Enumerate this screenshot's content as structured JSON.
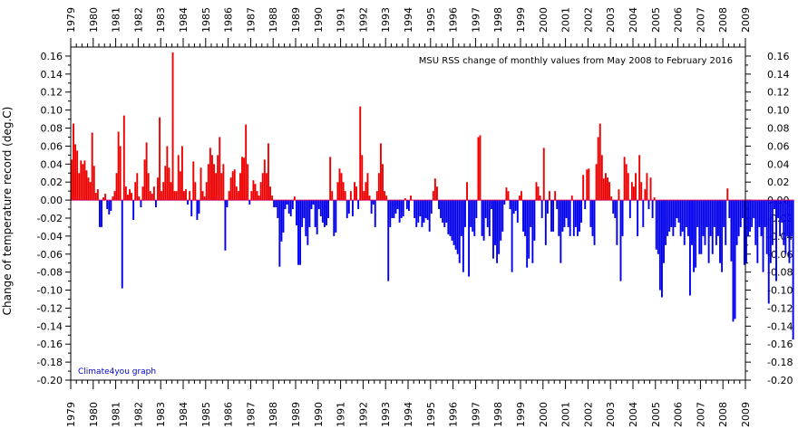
{
  "chart_data": {
    "type": "bar",
    "title": "MSU RSS change of monthly values from May 2008 to February 2016",
    "ylabel": "Change of temperature record (deg.C)",
    "xlabel": "",
    "credit": "Climate4you graph",
    "xlim": [
      1979,
      2009
    ],
    "ylim": [
      -0.2,
      0.17
    ],
    "ytick_labels": [
      "0.16",
      "0.14",
      "0.12",
      "0.10",
      "0.08",
      "0.06",
      "0.04",
      "0.02",
      "0.00",
      "-0.02",
      "-0.04",
      "-0.06",
      "-0.08",
      "-0.10",
      "-0.12",
      "-0.14",
      "-0.16",
      "-0.18",
      "-0.20"
    ],
    "ytick_values": [
      0.16,
      0.14,
      0.12,
      0.1,
      0.08,
      0.06,
      0.04,
      0.02,
      0.0,
      -0.02,
      -0.04,
      -0.06,
      -0.08,
      -0.1,
      -0.12,
      -0.14,
      -0.16,
      -0.18,
      -0.2
    ],
    "xtick_labels": [
      "1979",
      "1980",
      "1981",
      "1982",
      "1983",
      "1984",
      "1985",
      "1986",
      "1987",
      "1988",
      "1989",
      "1990",
      "1991",
      "1992",
      "1993",
      "1994",
      "1995",
      "1996",
      "1997",
      "1998",
      "1999",
      "2000",
      "2001",
      "2002",
      "2003",
      "2004",
      "2005",
      "2006",
      "2007",
      "2008",
      "2009"
    ],
    "xtick_values": [
      1979,
      1980,
      1981,
      1982,
      1983,
      1984,
      1985,
      1986,
      1987,
      1988,
      1989,
      1990,
      1991,
      1992,
      1993,
      1994,
      1995,
      1996,
      1997,
      1998,
      1999,
      2000,
      2001,
      2002,
      2003,
      2004,
      2005,
      2006,
      2007,
      2008,
      2009
    ],
    "grid": false,
    "positive_color": "#ee0000",
    "negative_color": "#0000ee",
    "zero_line_color": "#cc0066",
    "series": [
      {
        "start": "1979-01",
        "frequency": "monthly",
        "values": [
          0.045,
          0.085,
          0.062,
          0.055,
          0.03,
          0.044,
          0.04,
          0.044,
          0.033,
          0.025,
          0.02,
          0.075,
          0.038,
          0.008,
          0.012,
          -0.03,
          -0.03,
          0.003,
          0.007,
          -0.01,
          -0.016,
          -0.012,
          0.004,
          0.01,
          0.03,
          0.076,
          0.06,
          -0.098,
          0.094,
          0.015,
          0.006,
          0.012,
          0.008,
          -0.022,
          0.02,
          0.03,
          0.004,
          -0.008,
          0.015,
          0.045,
          0.064,
          0.03,
          0.01,
          0.007,
          0.015,
          -0.008,
          0.025,
          0.092,
          0.01,
          0.02,
          0.038,
          0.06,
          0.036,
          0.02,
          0.164,
          0.01,
          0.01,
          0.05,
          0.032,
          0.06,
          0.01,
          0.012,
          -0.005,
          0.01,
          -0.018,
          0.043,
          0.02,
          -0.022,
          -0.015,
          0.036,
          0.01,
          0.004,
          0.02,
          0.04,
          0.058,
          0.05,
          0.04,
          0.03,
          0.05,
          0.07,
          0.03,
          0.04,
          -0.056,
          -0.008,
          0.01,
          0.025,
          0.032,
          0.034,
          0.015,
          0.01,
          0.03,
          0.048,
          0.047,
          0.084,
          0.04,
          -0.005,
          0.01,
          0.022,
          0.018,
          0.01,
          0.005,
          0.02,
          0.03,
          0.045,
          0.03,
          0.063,
          0.015,
          0.005,
          -0.008,
          -0.008,
          -0.02,
          -0.074,
          -0.046,
          -0.036,
          -0.01,
          -0.005,
          -0.015,
          -0.018,
          -0.01,
          0.004,
          -0.028,
          -0.072,
          -0.072,
          -0.03,
          -0.02,
          -0.04,
          -0.05,
          -0.03,
          -0.01,
          -0.005,
          -0.03,
          -0.038,
          -0.01,
          -0.018,
          -0.025,
          -0.03,
          -0.028,
          -0.02,
          0.048,
          0.01,
          -0.04,
          -0.036,
          0.02,
          0.035,
          0.03,
          0.02,
          0.01,
          -0.02,
          -0.015,
          0.01,
          -0.018,
          0.02,
          0.015,
          -0.01,
          0.104,
          0.05,
          0.01,
          0.02,
          0.03,
          0.005,
          -0.015,
          -0.005,
          -0.03,
          0.01,
          0.03,
          0.063,
          0.04,
          0.01,
          0.005,
          -0.09,
          -0.03,
          -0.02,
          -0.02,
          -0.015,
          -0.01,
          -0.025,
          -0.02,
          -0.018,
          0.002,
          -0.01,
          -0.012,
          0.005,
          0.0,
          -0.02,
          -0.03,
          -0.025,
          -0.018,
          -0.03,
          -0.025,
          -0.02,
          -0.022,
          -0.035,
          -0.015,
          0.01,
          0.024,
          0.015,
          -0.01,
          -0.02,
          -0.025,
          -0.03,
          -0.025,
          -0.038,
          -0.04,
          -0.045,
          -0.05,
          -0.055,
          -0.06,
          -0.07,
          -0.04,
          -0.08,
          -0.03,
          0.02,
          -0.085,
          -0.03,
          -0.035,
          -0.04,
          -0.02,
          0.07,
          0.072,
          -0.04,
          -0.045,
          -0.02,
          -0.03,
          -0.04,
          -0.01,
          -0.065,
          -0.05,
          -0.07,
          -0.06,
          -0.045,
          -0.035,
          -0.005,
          0.014,
          0.01,
          -0.01,
          -0.08,
          -0.015,
          -0.012,
          -0.025,
          0.005,
          0.01,
          -0.035,
          -0.04,
          -0.075,
          -0.065,
          -0.03,
          -0.07,
          -0.045,
          0.02,
          0.015,
          0.005,
          -0.02,
          0.058,
          -0.05,
          -0.015,
          0.01,
          -0.035,
          -0.035,
          0.01,
          -0.01,
          -0.04,
          -0.07,
          -0.035,
          -0.03,
          -0.02,
          -0.03,
          -0.04,
          0.005,
          -0.04,
          -0.03,
          -0.04,
          -0.035,
          -0.025,
          0.028,
          -0.01,
          0.034,
          0.035,
          -0.03,
          -0.04,
          -0.05,
          0.04,
          0.07,
          0.085,
          0.05,
          0.024,
          0.03,
          0.025,
          0.02,
          0.004,
          -0.015,
          -0.02,
          -0.05,
          0.012,
          -0.09,
          -0.04,
          0.048,
          0.04,
          0.03,
          -0.02,
          0.02,
          0.015,
          0.03,
          -0.04,
          0.05,
          0.02,
          -0.03,
          0.012,
          0.03,
          -0.01,
          0.025,
          -0.02,
          0.003,
          -0.055,
          -0.06,
          -0.1,
          -0.108,
          -0.07,
          -0.05,
          -0.04,
          -0.035,
          -0.03,
          -0.04,
          -0.03,
          -0.02,
          -0.025,
          -0.04,
          -0.035,
          -0.05,
          -0.03,
          -0.04,
          -0.106,
          -0.05,
          -0.08,
          -0.075,
          -0.03,
          -0.06,
          -0.06,
          -0.04,
          -0.05,
          -0.03,
          -0.07,
          -0.04,
          -0.06,
          -0.03,
          -0.05,
          -0.04,
          -0.07,
          -0.08,
          -0.03,
          -0.05,
          0.013,
          -0.02,
          -0.068,
          -0.135,
          -0.132,
          -0.05,
          -0.04,
          -0.03,
          -0.02,
          -0.072,
          -0.07,
          -0.04,
          -0.035,
          -0.03,
          -0.02,
          -0.05,
          -0.07,
          -0.03,
          -0.04,
          -0.08,
          -0.03,
          -0.06,
          -0.115,
          -0.07,
          -0.05,
          -0.01,
          -0.09,
          -0.02,
          -0.04,
          -0.025,
          -0.05,
          -0.06,
          -0.04,
          -0.07,
          -0.04,
          -0.155
        ]
      }
    ]
  }
}
